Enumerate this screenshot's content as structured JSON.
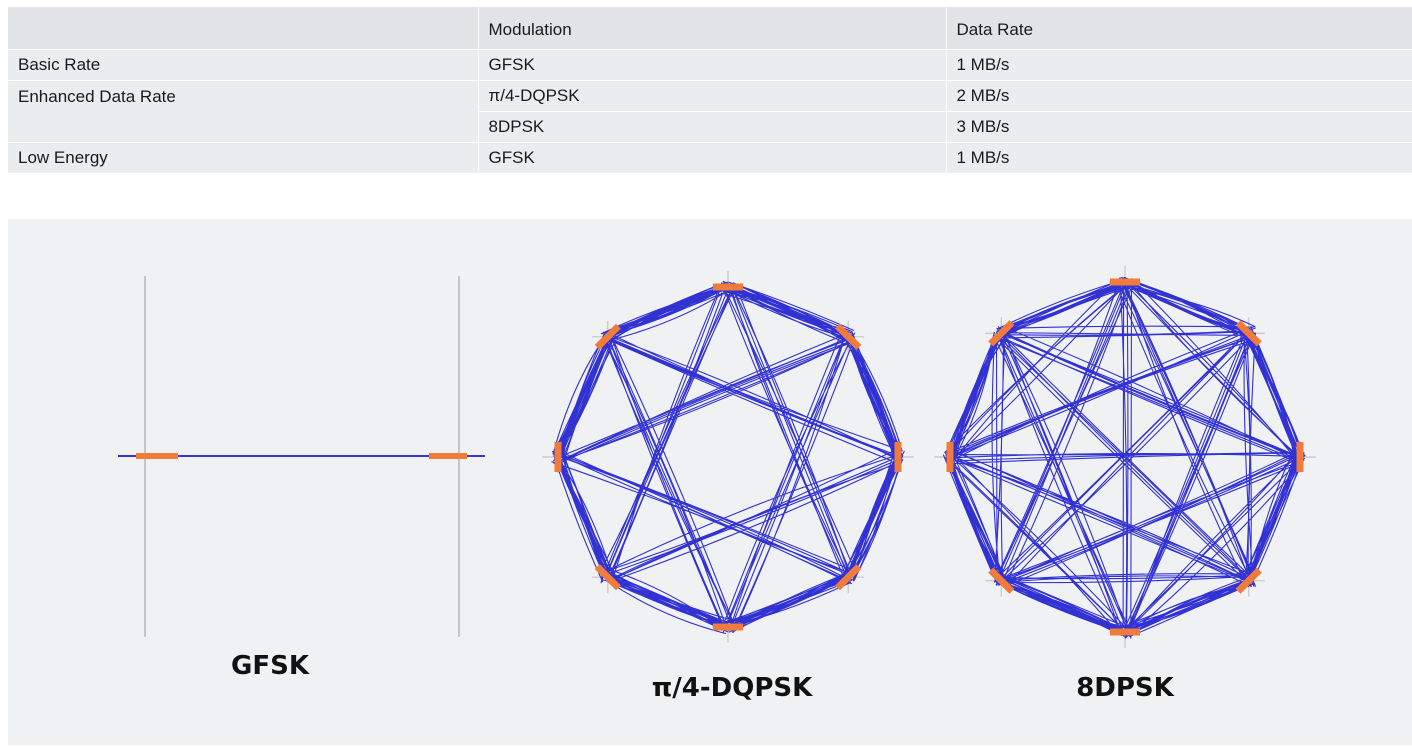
{
  "table": {
    "headers": [
      "",
      "Modulation",
      "Data Rate"
    ],
    "rows": [
      {
        "mode": "Basic Rate",
        "modulation": "GFSK",
        "rate": "1 MB/s"
      },
      {
        "mode": "Enhanced Data Rate",
        "modulation": "π/4-DQPSK",
        "rate": "2 MB/s"
      },
      {
        "mode": "",
        "modulation": "8DPSK",
        "rate": "3 MB/s"
      },
      {
        "mode": "Low Energy",
        "modulation": "GFSK",
        "rate": "1 MB/s"
      }
    ]
  },
  "figures": {
    "gfsk_label": "GFSK",
    "dqpsk_label": "π/4-DQPSK",
    "dpsk8_label": "8DPSK"
  },
  "colors": {
    "trace": "#1c1cd0",
    "symbol": "#f07b3a",
    "axis": "#c6c6c6",
    "panel": "#f0f1f2",
    "table_header": "#e1e3e6",
    "table_row": "#eaecee"
  }
}
